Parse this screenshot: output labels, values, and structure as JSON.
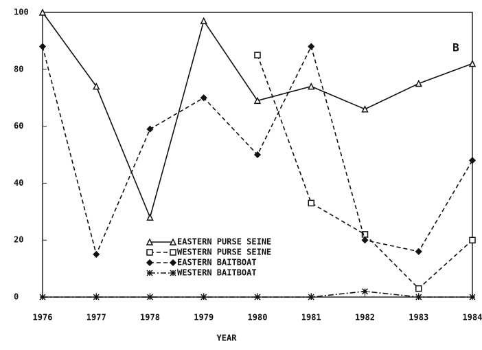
{
  "chart_data": {
    "type": "line",
    "panel_label": "B",
    "x_label": "YEAR",
    "x": [
      1976,
      1977,
      1978,
      1979,
      1980,
      1981,
      1982,
      1983,
      1984
    ],
    "xlim": [
      1976,
      1984
    ],
    "xticks": [
      1976,
      1977,
      1978,
      1979,
      1980,
      1981,
      1982,
      1983,
      1984
    ],
    "ylim": [
      0,
      100
    ],
    "yticks": [
      0,
      20,
      40,
      60,
      80,
      100
    ],
    "series": [
      {
        "name": "EASTERN PURSE SEINE",
        "color": "#111111",
        "marker": "triangle",
        "dash": "solid",
        "values": [
          100,
          74,
          28,
          97,
          69,
          74,
          66,
          75,
          82
        ]
      },
      {
        "name": "WESTERN PURSE SEINE",
        "color": "#111111",
        "marker": "square",
        "dash": "dashed",
        "values": [
          null,
          null,
          null,
          null,
          85,
          33,
          22,
          3,
          20
        ]
      },
      {
        "name": "EASTERN BAITBOAT",
        "color": "#111111",
        "marker": "diamond",
        "dash": "dashed",
        "values": [
          88,
          15,
          59,
          70,
          50,
          88,
          20,
          16,
          48
        ]
      },
      {
        "name": "WESTERN BAITBOAT",
        "color": "#111111",
        "marker": "star",
        "dash": "dashdot",
        "values": [
          0,
          0,
          0,
          0,
          0,
          0,
          2,
          0,
          0
        ]
      }
    ]
  }
}
